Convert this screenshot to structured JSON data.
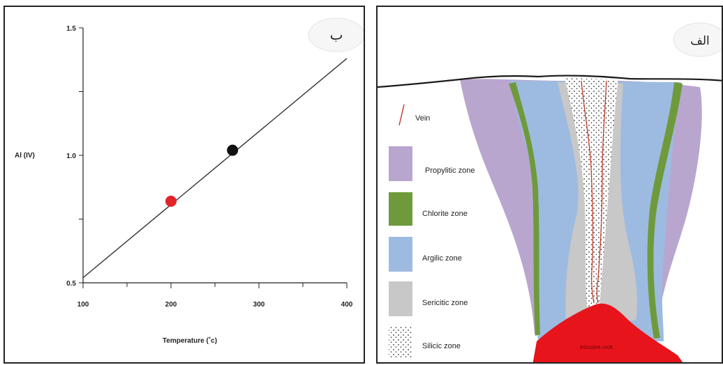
{
  "panel_b": {
    "badge": "ب",
    "chart_data": {
      "type": "line",
      "ylabel": "Al (IV)",
      "xlabel": "Temperature (˚c)",
      "xlim": [
        100,
        400
      ],
      "ylim": [
        0.5,
        1.5
      ],
      "x_ticks": [
        100,
        200,
        300,
        400
      ],
      "y_ticks": [
        0.5,
        1.0,
        1.5
      ],
      "y_tick_labels": [
        "0.5",
        "1.0",
        "1.5"
      ],
      "x_tick_labels": [
        "100",
        "200",
        "300",
        "400"
      ],
      "line": {
        "x": [
          100,
          400
        ],
        "y": [
          0.52,
          1.38
        ]
      },
      "points": [
        {
          "x": 200,
          "y": 0.82,
          "color": "#e0242a"
        },
        {
          "x": 270,
          "y": 1.02,
          "color": "#111111"
        }
      ]
    }
  },
  "panel_a": {
    "badge": "الف",
    "legend": [
      {
        "label": "Vein",
        "swatch": "vein",
        "color": "#c0392b"
      },
      {
        "label": "Propylitic zone",
        "swatch": "fill",
        "color": "#b9a6cf"
      },
      {
        "label": "Chlorite zone",
        "swatch": "fill",
        "color": "#6f9a3c"
      },
      {
        "label": "Argilic zone",
        "swatch": "fill",
        "color": "#9dbbe0"
      },
      {
        "label": "Sericitic zone",
        "swatch": "fill",
        "color": "#c8c8c8"
      },
      {
        "label": "Silicic zone",
        "swatch": "dots",
        "color": "#333333"
      }
    ],
    "intrusive_label": "intrusive rock",
    "colors": {
      "propylitic": "#b9a6cf",
      "chlorite": "#6f9a3c",
      "argilic": "#9dbbe0",
      "sericitic": "#c8c8c8",
      "intrusive": "#e8141c",
      "vein": "#c0392b"
    }
  }
}
